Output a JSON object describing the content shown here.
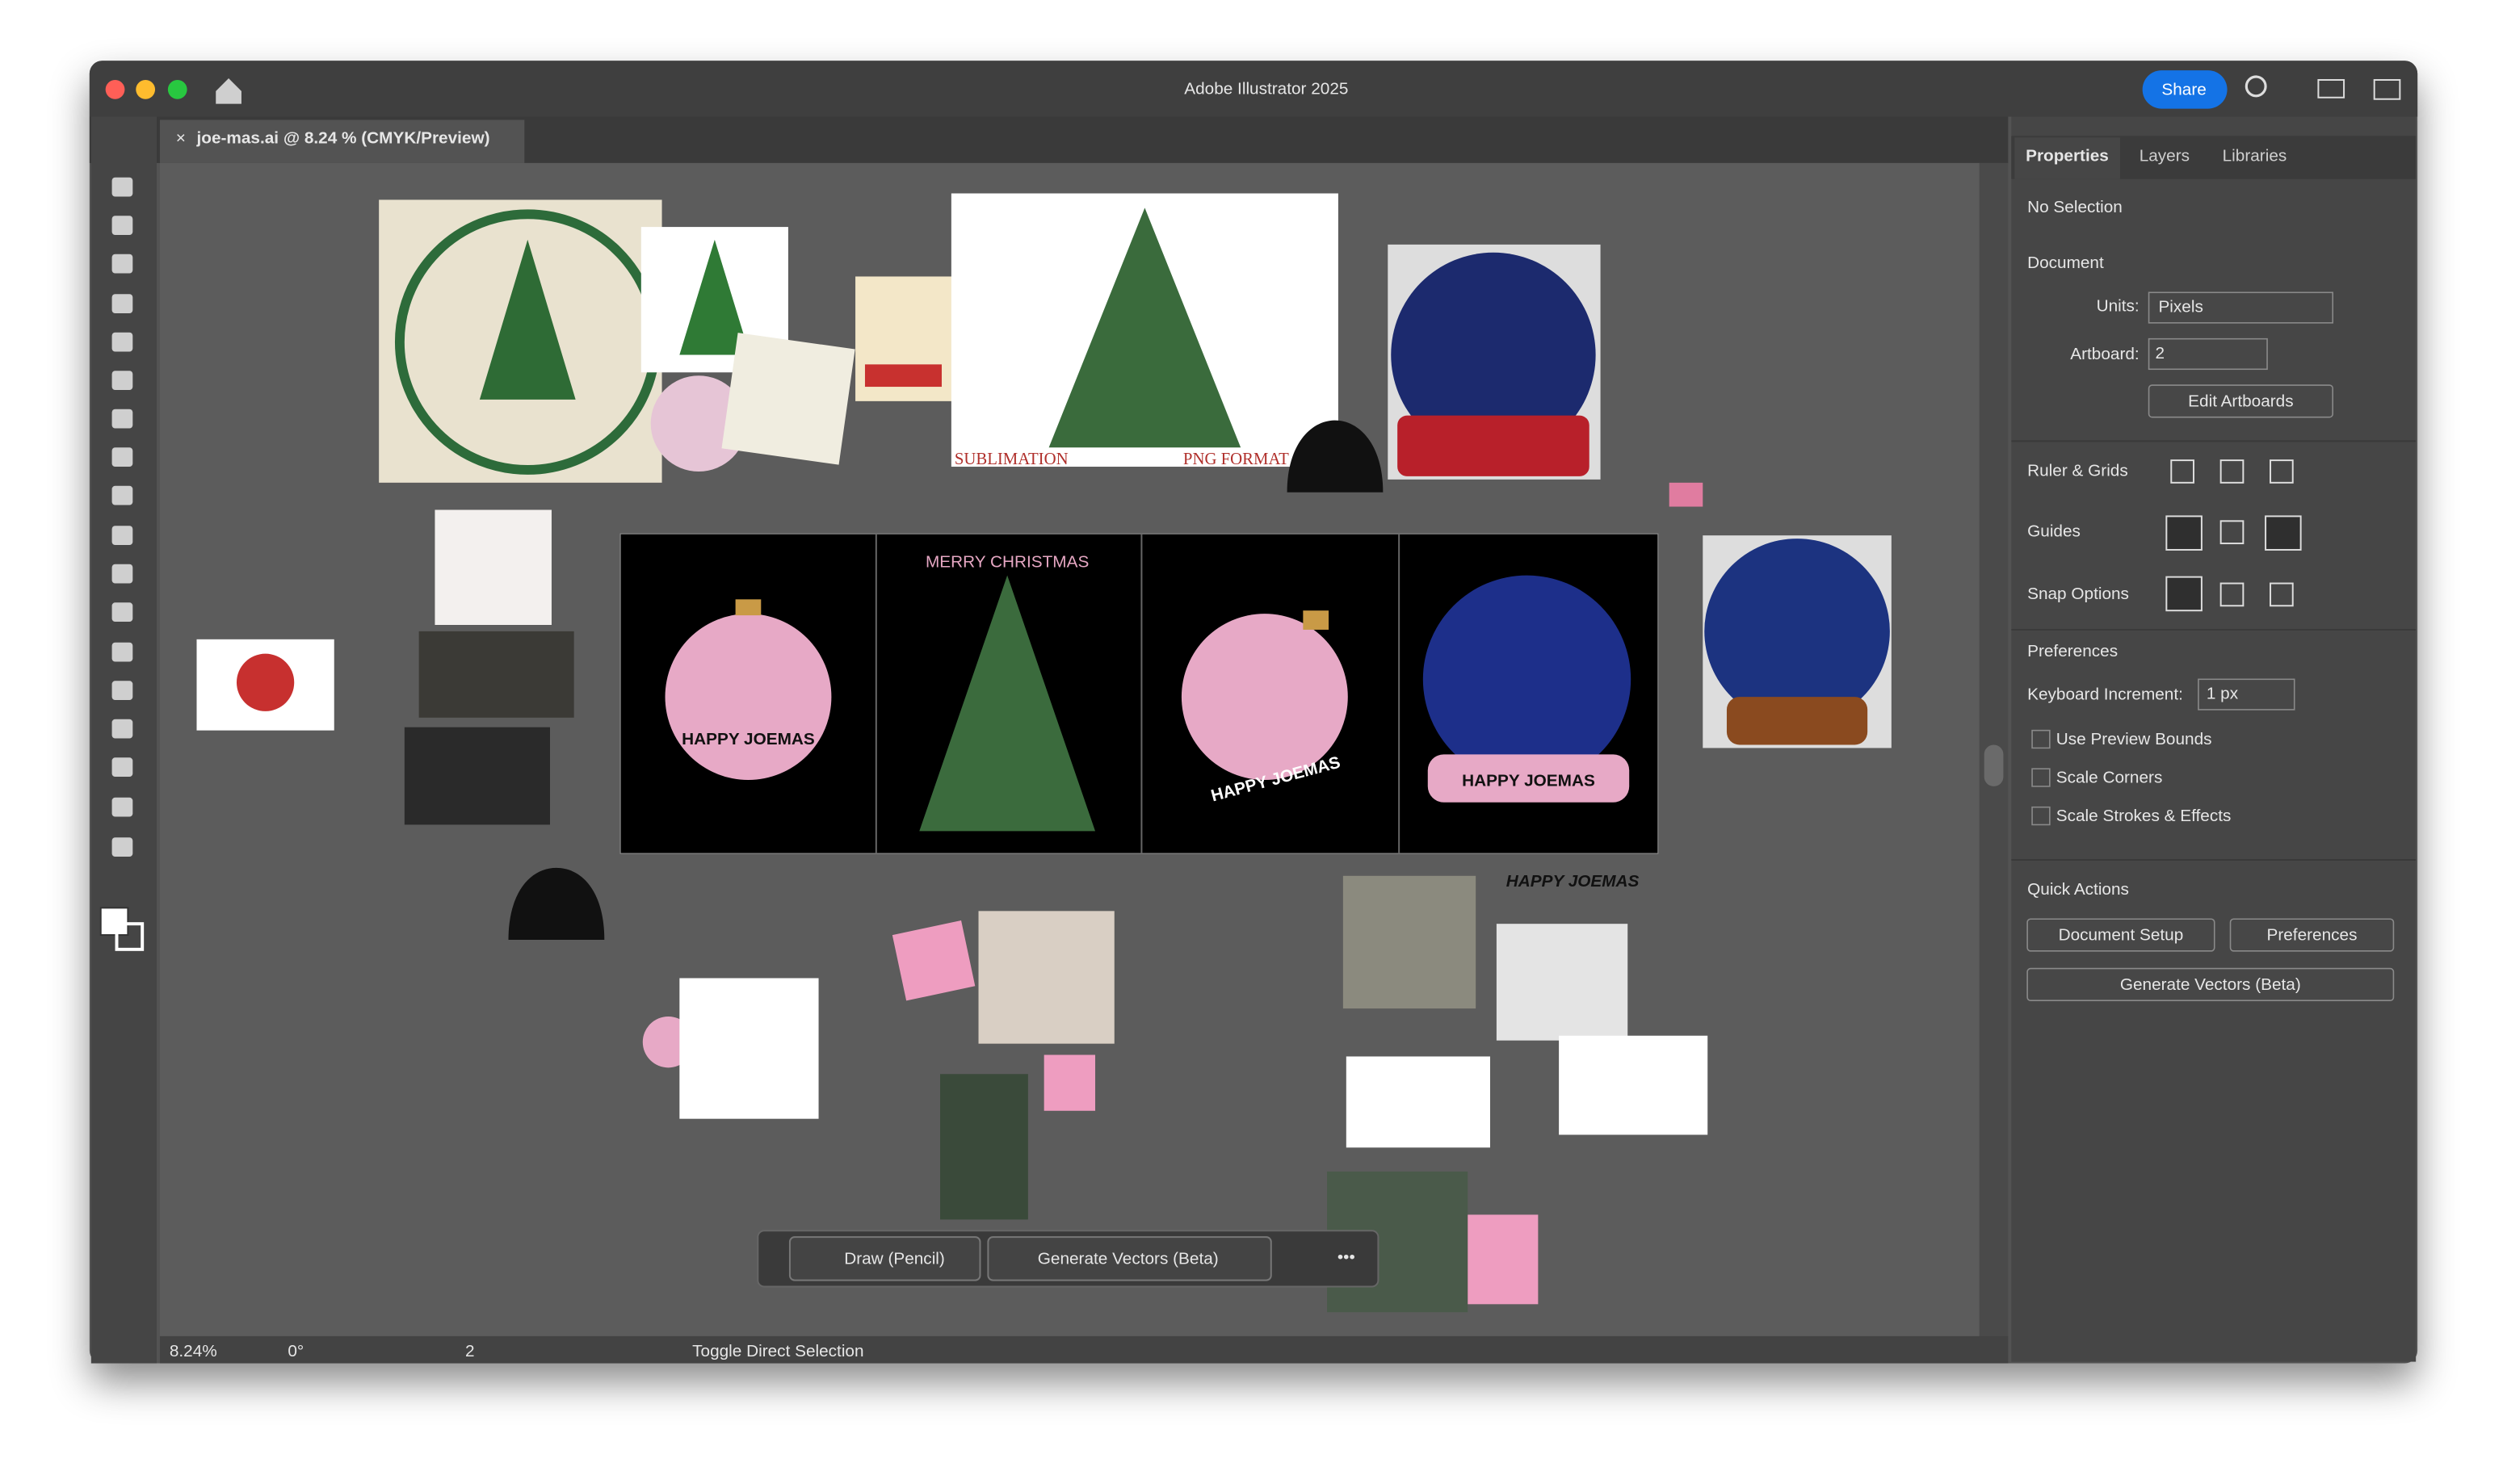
{
  "window": {
    "title": "Adobe Illustrator 2025",
    "share": "Share"
  },
  "document_tab": "joe-mas.ai @ 8.24 % (CMYK/Preview)",
  "panel": {
    "tabs": [
      "Properties",
      "Layers",
      "Libraries"
    ],
    "selection": "No Selection",
    "document": "Document",
    "units_label": "Units:",
    "units": "Pixels",
    "artboard_label": "Artboard:",
    "artboard": "2",
    "edit_artboards": "Edit Artboards",
    "sections": [
      "Ruler & Grids",
      "Guides",
      "Snap Options",
      "Preferences"
    ],
    "keyboard_increment_label": "Keyboard Increment:",
    "keyboard_increment": "1 px",
    "checkboxes": [
      "Use Preview Bounds",
      "Scale Corners",
      "Scale Strokes & Effects"
    ],
    "quick_actions": "Quick Actions",
    "buttons": [
      "Document Setup",
      "Preferences",
      "Generate Vectors (Beta)"
    ]
  },
  "context_bar": [
    "Draw (Pencil)",
    "Generate Vectors (Beta)"
  ],
  "status": {
    "zoom": "8.24%",
    "rotation": "0°",
    "artboard": "2",
    "tool": "Toggle Direct Selection"
  },
  "artwork": {
    "texts": [
      "HAPPY JOEMAS",
      "MERRY CHRISTMAS",
      "HAPPY JOEMAS",
      "HAPPY JOEMAS",
      "HAPPY JOEMAS",
      "SUBLIMATION",
      "PNG FORMAT 3"
    ]
  }
}
